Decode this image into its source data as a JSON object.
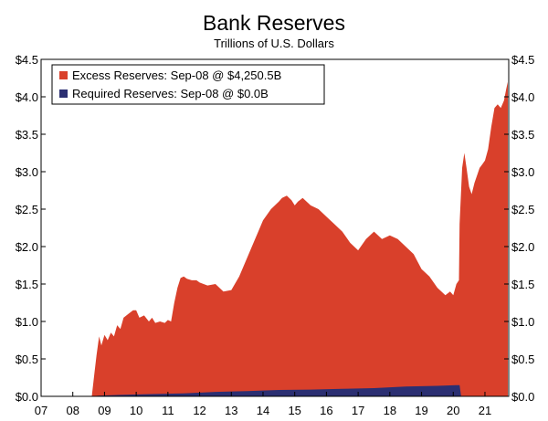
{
  "chart_data": {
    "type": "area",
    "title": "Bank Reserves",
    "subtitle": "Trillions of U.S. Dollars",
    "xlabel": "",
    "ylabel": "",
    "xlim": [
      2007.0,
      2021.75
    ],
    "ylim": [
      0,
      4.5
    ],
    "y_ticks": [
      0.0,
      0.5,
      1.0,
      1.5,
      2.0,
      2.5,
      3.0,
      3.5,
      4.0,
      4.5
    ],
    "y_tick_labels": [
      "$0.0",
      "$0.5",
      "$1.0",
      "$1.5",
      "$2.0",
      "$2.5",
      "$3.0",
      "$3.5",
      "$4.0",
      "$4.5"
    ],
    "x_ticks": [
      2007,
      2008,
      2009,
      2010,
      2011,
      2012,
      2013,
      2014,
      2015,
      2016,
      2017,
      2018,
      2019,
      2020,
      2021
    ],
    "x_tick_labels": [
      "07",
      "08",
      "09",
      "10",
      "11",
      "12",
      "13",
      "14",
      "15",
      "16",
      "17",
      "18",
      "19",
      "20",
      "21"
    ],
    "grid": false,
    "legend_position": "top-left",
    "series": [
      {
        "name": "Excess Reserves: Sep-08 @ $4,250.5B",
        "color": "#d9402b",
        "x": [
          2007.0,
          2008.6,
          2008.68,
          2008.75,
          2008.83,
          2008.9,
          2009.0,
          2009.1,
          2009.2,
          2009.3,
          2009.4,
          2009.5,
          2009.6,
          2009.75,
          2009.9,
          2010.0,
          2010.1,
          2010.25,
          2010.4,
          2010.5,
          2010.6,
          2010.75,
          2010.9,
          2011.0,
          2011.1,
          2011.2,
          2011.3,
          2011.4,
          2011.5,
          2011.6,
          2011.75,
          2011.9,
          2012.0,
          2012.25,
          2012.5,
          2012.75,
          2013.0,
          2013.25,
          2013.5,
          2013.75,
          2014.0,
          2014.25,
          2014.5,
          2014.6,
          2014.75,
          2014.9,
          2015.0,
          2015.1,
          2015.25,
          2015.5,
          2015.75,
          2016.0,
          2016.25,
          2016.5,
          2016.75,
          2017.0,
          2017.25,
          2017.5,
          2017.75,
          2018.0,
          2018.25,
          2018.5,
          2018.75,
          2019.0,
          2019.25,
          2019.5,
          2019.75,
          2019.9,
          2020.0,
          2020.1,
          2020.18,
          2020.2,
          2020.28,
          2020.35,
          2020.42,
          2020.5,
          2020.58,
          2020.67,
          2020.75,
          2020.83,
          2020.92,
          2021.0,
          2021.1,
          2021.2,
          2021.3,
          2021.4,
          2021.5,
          2021.6,
          2021.67,
          2021.72
        ],
        "values": [
          0.0,
          0.0,
          0.3,
          0.55,
          0.8,
          0.68,
          0.82,
          0.75,
          0.85,
          0.8,
          0.95,
          0.9,
          1.05,
          1.1,
          1.15,
          1.15,
          1.05,
          1.08,
          1.0,
          1.05,
          0.98,
          1.0,
          0.98,
          1.02,
          1.0,
          1.25,
          1.45,
          1.58,
          1.6,
          1.57,
          1.55,
          1.55,
          1.52,
          1.48,
          1.5,
          1.4,
          1.42,
          1.6,
          1.85,
          2.1,
          2.35,
          2.5,
          2.6,
          2.65,
          2.68,
          2.62,
          2.55,
          2.6,
          2.65,
          2.55,
          2.5,
          2.4,
          2.3,
          2.2,
          2.05,
          1.95,
          2.1,
          2.2,
          2.1,
          2.15,
          2.1,
          2.0,
          1.9,
          1.7,
          1.6,
          1.45,
          1.35,
          1.4,
          1.35,
          1.5,
          1.55,
          2.3,
          3.05,
          3.25,
          3.05,
          2.8,
          2.7,
          2.85,
          2.95,
          3.05,
          3.1,
          3.15,
          3.3,
          3.6,
          3.85,
          3.9,
          3.85,
          3.95,
          4.1,
          4.2
        ]
      },
      {
        "name": "Required Reserves: Sep-08 @ $0.0B",
        "color": "#2b2f72",
        "x": [
          2007.0,
          2008.6,
          2008.8,
          2009.5,
          2010.5,
          2011.5,
          2012.5,
          2013.5,
          2014.5,
          2015.5,
          2016.5,
          2017.5,
          2018.5,
          2019.5,
          2020.1,
          2020.2,
          2020.25,
          2021.72
        ],
        "values": [
          0.0,
          0.0,
          0.01,
          0.02,
          0.03,
          0.04,
          0.06,
          0.07,
          0.085,
          0.09,
          0.1,
          0.11,
          0.13,
          0.14,
          0.15,
          0.15,
          0.0,
          0.0
        ]
      }
    ]
  }
}
